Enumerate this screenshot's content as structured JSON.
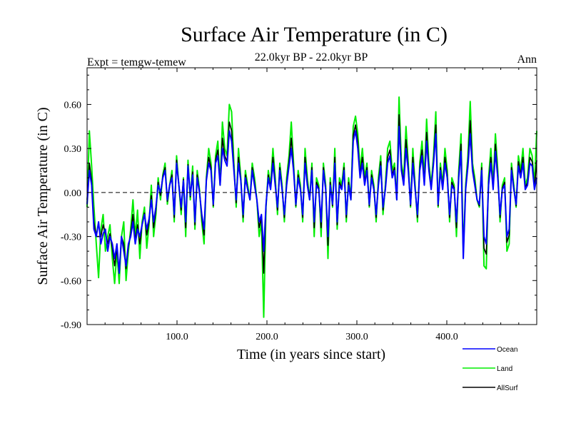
{
  "chart_data": {
    "type": "line",
    "title": "Surface Air Temperature (in C)",
    "subtitle_left": "Expt = temgw-temew",
    "subtitle_center": "22.0kyr BP - 22.0kyr BP",
    "subtitle_right": "Ann",
    "xlabel": "Time (in years since start)",
    "ylabel": "Surface Air Temperature (in C)",
    "xlim": [
      0,
      500
    ],
    "ylim": [
      -0.9,
      0.85
    ],
    "x_ticks": [
      100,
      200,
      300,
      400
    ],
    "x_tick_labels": [
      "100.0",
      "200.0",
      "300.0",
      "400.0"
    ],
    "y_ticks": [
      -0.9,
      -0.6,
      -0.3,
      0.0,
      0.3,
      0.6
    ],
    "y_tick_labels": [
      "-0.90",
      "-0.60",
      "-0.30",
      "0.00",
      "0.30",
      "0.60"
    ],
    "zero_line": 0.0,
    "legend_position": "bottom-right, below plot",
    "series": [
      {
        "name": "Land",
        "color": "#00ee00",
        "values": [
          -0.1,
          0.42,
          0.18,
          -0.1,
          -0.35,
          -0.58,
          -0.25,
          -0.15,
          -0.4,
          -0.3,
          -0.22,
          -0.45,
          -0.62,
          -0.4,
          -0.62,
          -0.3,
          -0.2,
          -0.6,
          -0.4,
          -0.25,
          -0.05,
          -0.3,
          -0.12,
          -0.45,
          -0.2,
          -0.1,
          -0.38,
          -0.22,
          0.05,
          -0.3,
          -0.15,
          0.1,
          -0.05,
          0.12,
          0.2,
          -0.08,
          0.05,
          0.15,
          -0.2,
          0.25,
          0.05,
          -0.15,
          0.1,
          -0.3,
          0.22,
          -0.05,
          0.18,
          -0.25,
          0.15,
          0.02,
          -0.2,
          -0.35,
          0.1,
          0.3,
          0.2,
          -0.1,
          0.25,
          0.35,
          0.05,
          0.48,
          0.3,
          0.25,
          0.6,
          0.55,
          0.2,
          -0.1,
          0.3,
          0.1,
          -0.2,
          0.15,
          0.05,
          -0.05,
          0.2,
          0.1,
          -0.05,
          -0.3,
          -0.2,
          -0.85,
          -0.1,
          0.15,
          0.05,
          0.3,
          0.1,
          -0.15,
          0.2,
          0.05,
          -0.2,
          0.1,
          0.25,
          0.48,
          0.2,
          -0.1,
          0.15,
          0.05,
          -0.2,
          0.3,
          0.1,
          -0.05,
          0.2,
          -0.3,
          0.1,
          0.05,
          -0.3,
          0.2,
          0.05,
          -0.45,
          0.1,
          -0.1,
          0.3,
          -0.25,
          0.1,
          0.05,
          0.2,
          -0.2,
          0.1,
          -0.05,
          0.45,
          0.52,
          0.4,
          0.15,
          0.3,
          0.1,
          0.2,
          -0.1,
          0.15,
          0.05,
          -0.2,
          0.1,
          0.25,
          -0.15,
          0.05,
          0.3,
          0.35,
          0.15,
          0.2,
          -0.05,
          0.65,
          0.2,
          0.1,
          0.45,
          0.2,
          -0.1,
          0.3,
          0.05,
          -0.2,
          0.2,
          0.35,
          0.1,
          0.5,
          0.2,
          0.05,
          0.25,
          0.55,
          -0.1,
          0.2,
          0.05,
          0.3,
          0.15,
          -0.2,
          0.1,
          0.05,
          -0.3,
          0.15,
          0.4,
          -0.4,
          0.05,
          0.25,
          0.62,
          0.2,
          0.1,
          -0.05,
          -0.1,
          0.2,
          -0.5,
          -0.52,
          0.1,
          0.3,
          0.05,
          0.4,
          0.15,
          -0.2,
          0.05,
          0.1,
          -0.4,
          -0.35,
          0.2,
          0.05,
          -0.1,
          0.25,
          0.15,
          0.3,
          0.05,
          0.1,
          0.3,
          0.25,
          0.05,
          0.42
        ]
      },
      {
        "name": "Ocean",
        "color": "#0000ff",
        "values": [
          -0.08,
          0.15,
          0.05,
          -0.25,
          -0.3,
          -0.2,
          -0.35,
          -0.28,
          -0.25,
          -0.4,
          -0.3,
          -0.35,
          -0.45,
          -0.35,
          -0.55,
          -0.3,
          -0.4,
          -0.5,
          -0.35,
          -0.3,
          -0.2,
          -0.35,
          -0.25,
          -0.3,
          -0.22,
          -0.15,
          -0.25,
          -0.18,
          -0.05,
          -0.2,
          -0.1,
          0.05,
          0.0,
          0.1,
          0.15,
          -0.05,
          0.05,
          0.1,
          -0.15,
          0.2,
          0.05,
          -0.1,
          0.08,
          -0.2,
          0.18,
          -0.02,
          0.12,
          -0.2,
          0.1,
          0.0,
          -0.15,
          -0.25,
          0.08,
          0.2,
          0.15,
          -0.08,
          0.2,
          0.25,
          0.05,
          0.3,
          0.22,
          0.18,
          0.42,
          0.35,
          0.15,
          -0.05,
          0.2,
          0.08,
          -0.15,
          0.1,
          0.02,
          -0.05,
          0.15,
          0.05,
          -0.05,
          -0.2,
          -0.15,
          -0.4,
          -0.08,
          0.1,
          0.02,
          0.2,
          0.05,
          -0.1,
          0.15,
          0.02,
          -0.15,
          0.05,
          0.18,
          0.3,
          0.15,
          -0.08,
          0.1,
          0.02,
          -0.15,
          0.2,
          0.05,
          -0.05,
          0.15,
          -0.2,
          0.05,
          0.02,
          -0.2,
          0.15,
          0.02,
          -0.3,
          0.05,
          -0.08,
          0.2,
          -0.2,
          0.05,
          0.02,
          0.15,
          -0.15,
          0.05,
          -0.05,
          0.35,
          0.42,
          0.3,
          0.1,
          0.2,
          0.05,
          0.15,
          -0.08,
          0.1,
          0.02,
          -0.15,
          0.05,
          0.18,
          -0.1,
          0.02,
          0.2,
          0.25,
          0.1,
          0.15,
          -0.05,
          0.45,
          0.15,
          0.05,
          0.3,
          0.15,
          -0.08,
          0.2,
          0.02,
          -0.15,
          0.15,
          0.25,
          0.05,
          0.35,
          0.15,
          0.02,
          0.2,
          0.4,
          -0.08,
          0.15,
          0.02,
          0.2,
          0.1,
          -0.15,
          0.05,
          0.02,
          -0.2,
          0.1,
          0.28,
          -0.45,
          0.02,
          0.18,
          0.4,
          0.15,
          0.05,
          -0.05,
          -0.08,
          0.15,
          -0.3,
          -0.35,
          0.05,
          0.2,
          0.02,
          0.28,
          0.1,
          -0.15,
          0.02,
          0.05,
          -0.3,
          -0.25,
          0.15,
          0.02,
          -0.08,
          0.18,
          0.1,
          0.2,
          0.02,
          0.05,
          0.2,
          0.18,
          0.02,
          0.1
        ]
      },
      {
        "name": "AllSurf",
        "color": "#000000",
        "values": [
          -0.05,
          0.2,
          0.08,
          -0.2,
          -0.3,
          -0.3,
          -0.3,
          -0.22,
          -0.28,
          -0.35,
          -0.28,
          -0.38,
          -0.5,
          -0.38,
          -0.55,
          -0.3,
          -0.35,
          -0.52,
          -0.37,
          -0.28,
          -0.15,
          -0.33,
          -0.22,
          -0.35,
          -0.22,
          -0.14,
          -0.29,
          -0.2,
          -0.02,
          -0.24,
          -0.12,
          0.07,
          -0.02,
          0.11,
          0.17,
          -0.06,
          0.05,
          0.12,
          -0.17,
          0.22,
          0.05,
          -0.12,
          0.09,
          -0.24,
          0.19,
          -0.03,
          0.14,
          -0.22,
          0.12,
          0.01,
          -0.17,
          -0.29,
          0.09,
          0.24,
          0.17,
          -0.09,
          0.22,
          0.29,
          0.05,
          0.37,
          0.25,
          0.21,
          0.48,
          0.42,
          0.17,
          -0.07,
          0.24,
          0.09,
          -0.17,
          0.12,
          0.03,
          -0.05,
          0.17,
          0.07,
          -0.05,
          -0.24,
          -0.17,
          -0.55,
          -0.09,
          0.12,
          0.03,
          0.24,
          0.07,
          -0.12,
          0.17,
          0.03,
          -0.17,
          0.07,
          0.21,
          0.37,
          0.17,
          -0.09,
          0.12,
          0.03,
          -0.17,
          0.24,
          0.07,
          -0.05,
          0.17,
          -0.24,
          0.07,
          0.03,
          -0.24,
          0.17,
          0.03,
          -0.36,
          0.07,
          -0.09,
          0.24,
          -0.22,
          0.07,
          0.03,
          0.17,
          -0.17,
          0.07,
          -0.05,
          0.39,
          0.46,
          0.34,
          0.12,
          0.24,
          0.07,
          0.17,
          -0.09,
          0.12,
          0.03,
          -0.17,
          0.07,
          0.21,
          -0.12,
          0.03,
          0.24,
          0.29,
          0.12,
          0.17,
          -0.05,
          0.53,
          0.17,
          0.07,
          0.36,
          0.17,
          -0.09,
          0.24,
          0.03,
          -0.17,
          0.17,
          0.29,
          0.07,
          0.41,
          0.17,
          0.03,
          0.22,
          0.46,
          -0.09,
          0.17,
          0.03,
          0.24,
          0.12,
          -0.17,
          0.07,
          0.03,
          -0.24,
          0.12,
          0.33,
          -0.43,
          0.03,
          0.21,
          0.49,
          0.17,
          0.07,
          -0.05,
          -0.09,
          0.17,
          -0.38,
          -0.42,
          0.07,
          0.24,
          0.03,
          0.33,
          0.12,
          -0.17,
          0.03,
          0.07,
          -0.34,
          -0.29,
          0.17,
          0.03,
          -0.09,
          0.21,
          0.12,
          0.24,
          0.03,
          0.07,
          0.24,
          0.21,
          0.03,
          0.22
        ]
      }
    ],
    "draw_order": [
      "Land",
      "AllSurf",
      "Ocean"
    ],
    "legend_order": [
      "Ocean",
      "Land",
      "AllSurf"
    ]
  }
}
